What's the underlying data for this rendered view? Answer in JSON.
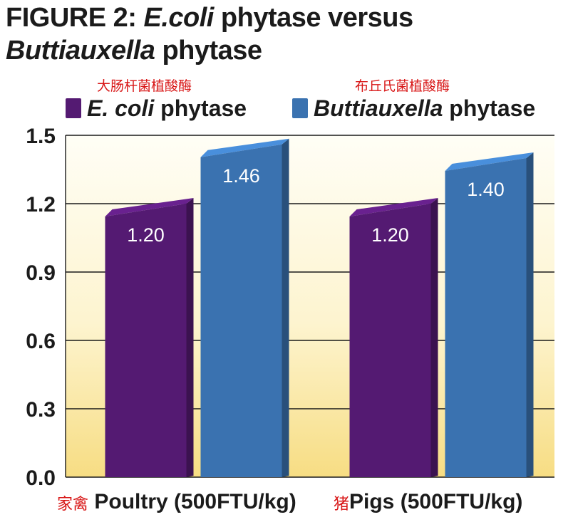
{
  "title": {
    "line1_prefix": "FIGURE 2: ",
    "line1_italic": "E.coli",
    "line1_suffix": " phytase versus",
    "line2_italic": "Buttiauxella",
    "line2_suffix": " phytase"
  },
  "annotations": {
    "ecoli_cn": "大肠杆菌植酸酶",
    "butti_cn": "布丘氏菌植酸酶",
    "poultry_cn": "家禽",
    "pigs_cn": "猪"
  },
  "legend": [
    {
      "italic": "E. coli",
      "rest": " phytase",
      "color": "#541a72"
    },
    {
      "italic": "Buttiauxella",
      "rest": " phytase",
      "color": "#3a72b0"
    }
  ],
  "chart_data": {
    "type": "bar",
    "title": "FIGURE 2: E.coli phytase versus Buttiauxella phytase",
    "categories": [
      "Poultry (500FTU/kg)",
      "Pigs (500FTU/kg)"
    ],
    "series": [
      {
        "name": "E. coli phytase",
        "values": [
          1.2,
          1.2
        ],
        "labels": [
          "1.20",
          "1.20"
        ],
        "color": "#541a72"
      },
      {
        "name": "Buttiauxella phytase",
        "values": [
          1.46,
          1.4
        ],
        "labels": [
          "1.46",
          "1.40"
        ],
        "color": "#3a72b0"
      }
    ],
    "ylim": [
      0,
      1.5
    ],
    "yticks": [
      "0.0",
      "0.3",
      "0.6",
      "0.9",
      "1.2",
      "1.5"
    ],
    "xlabel": "",
    "ylabel": "",
    "grid": true,
    "legend_position": "top"
  }
}
